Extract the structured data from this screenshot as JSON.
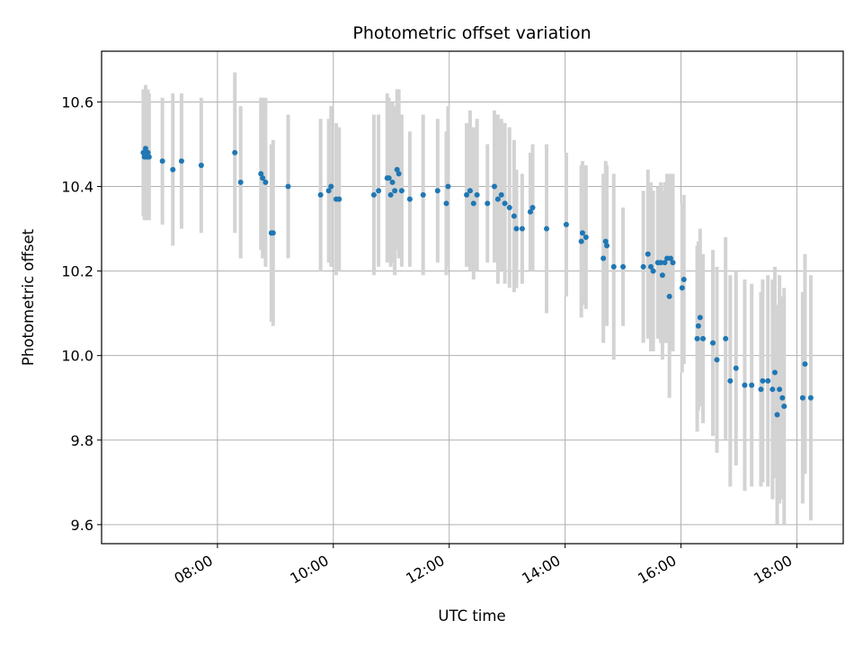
{
  "chart_data": {
    "type": "scatter",
    "title": "Photometric offset variation",
    "xlabel": "UTC time",
    "ylabel": "Photometric offset",
    "x_unit": "hours UTC",
    "xlim": [
      6.0,
      18.8
    ],
    "ylim": [
      9.555,
      10.72
    ],
    "x_ticks": [
      {
        "value": 8,
        "label": "08:00"
      },
      {
        "value": 10,
        "label": "10:00"
      },
      {
        "value": 12,
        "label": "12:00"
      },
      {
        "value": 14,
        "label": "14:00"
      },
      {
        "value": 16,
        "label": "16:00"
      },
      {
        "value": 18,
        "label": "18:00"
      }
    ],
    "y_ticks": [
      {
        "value": 9.6,
        "label": "9.6"
      },
      {
        "value": 9.8,
        "label": "9.8"
      },
      {
        "value": 10.0,
        "label": "10.0"
      },
      {
        "value": 10.2,
        "label": "10.2"
      },
      {
        "value": 10.4,
        "label": "10.4"
      },
      {
        "value": 10.6,
        "label": "10.6"
      }
    ],
    "grid": true,
    "marker_color": "#1f77b4",
    "errorbar_color": "#d3d3d3",
    "points": [
      [
        6.72,
        10.48,
        0.15
      ],
      [
        6.74,
        10.47,
        0.15
      ],
      [
        6.76,
        10.49,
        0.15
      ],
      [
        6.78,
        10.47,
        0.15
      ],
      [
        6.8,
        10.48,
        0.15
      ],
      [
        6.82,
        10.47,
        0.15
      ],
      [
        7.05,
        10.46,
        0.15
      ],
      [
        7.23,
        10.44,
        0.18
      ],
      [
        7.38,
        10.46,
        0.16
      ],
      [
        7.72,
        10.45,
        0.16
      ],
      [
        8.3,
        10.48,
        0.19
      ],
      [
        8.4,
        10.41,
        0.18
      ],
      [
        8.75,
        10.43,
        0.18
      ],
      [
        8.78,
        10.42,
        0.19
      ],
      [
        8.83,
        10.41,
        0.2
      ],
      [
        8.93,
        10.29,
        0.21
      ],
      [
        8.96,
        10.29,
        0.22
      ],
      [
        9.22,
        10.4,
        0.17
      ],
      [
        9.78,
        10.38,
        0.18
      ],
      [
        9.92,
        10.39,
        0.17
      ],
      [
        9.96,
        10.4,
        0.19
      ],
      [
        10.05,
        10.37,
        0.18
      ],
      [
        10.1,
        10.37,
        0.17
      ],
      [
        10.7,
        10.38,
        0.19
      ],
      [
        10.78,
        10.39,
        0.18
      ],
      [
        10.93,
        10.42,
        0.2
      ],
      [
        10.96,
        10.42,
        0.19
      ],
      [
        10.99,
        10.38,
        0.17
      ],
      [
        11.02,
        10.41,
        0.19
      ],
      [
        11.06,
        10.39,
        0.2
      ],
      [
        11.1,
        10.44,
        0.19
      ],
      [
        11.13,
        10.43,
        0.2
      ],
      [
        11.18,
        10.39,
        0.18
      ],
      [
        11.32,
        10.37,
        0.16
      ],
      [
        11.55,
        10.38,
        0.19
      ],
      [
        11.8,
        10.39,
        0.17
      ],
      [
        11.95,
        10.36,
        0.17
      ],
      [
        11.98,
        10.4,
        0.19
      ],
      [
        12.3,
        10.38,
        0.17
      ],
      [
        12.36,
        10.39,
        0.19
      ],
      [
        12.42,
        10.36,
        0.18
      ],
      [
        12.48,
        10.38,
        0.18
      ],
      [
        12.66,
        10.36,
        0.14
      ],
      [
        12.78,
        10.4,
        0.18
      ],
      [
        12.84,
        10.37,
        0.2
      ],
      [
        12.9,
        10.38,
        0.18
      ],
      [
        12.96,
        10.36,
        0.19
      ],
      [
        13.04,
        10.35,
        0.19
      ],
      [
        13.12,
        10.33,
        0.18
      ],
      [
        13.16,
        10.3,
        0.14
      ],
      [
        13.26,
        10.3,
        0.13
      ],
      [
        13.4,
        10.34,
        0.14
      ],
      [
        13.44,
        10.35,
        0.15
      ],
      [
        13.68,
        10.3,
        0.2
      ],
      [
        14.02,
        10.31,
        0.17
      ],
      [
        14.28,
        10.27,
        0.18
      ],
      [
        14.3,
        10.29,
        0.17
      ],
      [
        14.36,
        10.28,
        0.17
      ],
      [
        14.66,
        10.23,
        0.2
      ],
      [
        14.7,
        10.27,
        0.19
      ],
      [
        14.72,
        10.26,
        0.19
      ],
      [
        14.84,
        10.21,
        0.22
      ],
      [
        15.0,
        10.21,
        0.14
      ],
      [
        15.35,
        10.21,
        0.18
      ],
      [
        15.43,
        10.24,
        0.2
      ],
      [
        15.48,
        10.21,
        0.2
      ],
      [
        15.52,
        10.2,
        0.19
      ],
      [
        15.6,
        10.22,
        0.18
      ],
      [
        15.65,
        10.22,
        0.19
      ],
      [
        15.68,
        10.19,
        0.2
      ],
      [
        15.72,
        10.22,
        0.19
      ],
      [
        15.76,
        10.23,
        0.2
      ],
      [
        15.8,
        10.14,
        0.24
      ],
      [
        15.82,
        10.23,
        0.2
      ],
      [
        15.86,
        10.22,
        0.21
      ],
      [
        16.02,
        10.16,
        0.2
      ],
      [
        16.05,
        10.18,
        0.2
      ],
      [
        16.28,
        10.04,
        0.22
      ],
      [
        16.3,
        10.07,
        0.2
      ],
      [
        16.33,
        10.09,
        0.21
      ],
      [
        16.38,
        10.04,
        0.2
      ],
      [
        16.55,
        10.03,
        0.22
      ],
      [
        16.62,
        9.99,
        0.22
      ],
      [
        16.77,
        10.04,
        0.24
      ],
      [
        16.85,
        9.94,
        0.25
      ],
      [
        16.95,
        9.97,
        0.23
      ],
      [
        17.1,
        9.93,
        0.25
      ],
      [
        17.22,
        9.93,
        0.24
      ],
      [
        17.38,
        9.92,
        0.23
      ],
      [
        17.41,
        9.94,
        0.24
      ],
      [
        17.5,
        9.94,
        0.25
      ],
      [
        17.58,
        9.92,
        0.26
      ],
      [
        17.62,
        9.96,
        0.25
      ],
      [
        17.66,
        9.86,
        0.26
      ],
      [
        17.7,
        9.92,
        0.27
      ],
      [
        17.75,
        9.9,
        0.24
      ],
      [
        17.78,
        9.88,
        0.28
      ],
      [
        18.1,
        9.9,
        0.25
      ],
      [
        18.14,
        9.98,
        0.26
      ],
      [
        18.24,
        9.9,
        0.29
      ]
    ]
  }
}
